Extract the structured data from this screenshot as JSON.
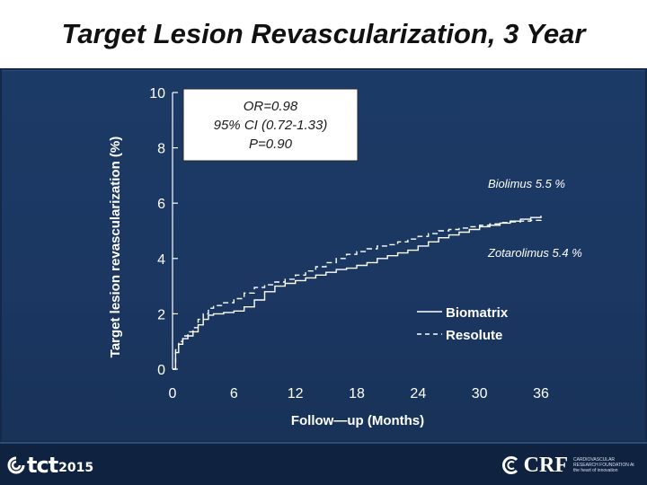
{
  "slide": {
    "title": "Target Lesion Revascularization, 3 Year"
  },
  "chart_data": {
    "type": "line",
    "xlabel": "Follow—up  (Months)",
    "ylabel": "Target  lesion  revascularization  (%)",
    "xlim": [
      0,
      36
    ],
    "ylim": [
      0,
      10
    ],
    "x_ticks": [
      "0",
      "6",
      "12",
      "18",
      "24",
      "30",
      "36"
    ],
    "y_ticks": [
      "0",
      "2",
      "4",
      "6",
      "8",
      "10"
    ],
    "grid": false,
    "legend": [
      "Biomatrix",
      "Resolute"
    ],
    "stats_box": {
      "or": "OR=0.98",
      "ci": "95% CI (0.72-1.33)",
      "p": "P=0.90"
    },
    "annotations": {
      "biolimus": "Biolimus  5.5 %",
      "zotarolimus": "Zotarolimus  5.4 %"
    },
    "series": [
      {
        "name": "Biomatrix",
        "style": "solid",
        "color": "#ffffff",
        "x": [
          0,
          0.3,
          0.6,
          1.0,
          1.5,
          2.0,
          2.5,
          3.0,
          3.5,
          4.0,
          5.0,
          6.0,
          7.0,
          8.0,
          9.0,
          10.0,
          11.0,
          12.0,
          13.0,
          14.0,
          15.0,
          16.0,
          17.0,
          18.0,
          19.0,
          20.0,
          21.0,
          22.0,
          23.0,
          24.0,
          25.0,
          26.0,
          27.0,
          28.0,
          29.0,
          30.0,
          31.0,
          32.0,
          33.0,
          34.0,
          35.0,
          36.0
        ],
        "y": [
          0,
          0.6,
          0.9,
          1.1,
          1.2,
          1.35,
          1.6,
          1.8,
          1.95,
          2.0,
          2.05,
          2.1,
          2.25,
          2.5,
          2.8,
          3.0,
          3.1,
          3.2,
          3.3,
          3.4,
          3.5,
          3.6,
          3.65,
          3.75,
          3.85,
          4.0,
          4.1,
          4.2,
          4.3,
          4.45,
          4.6,
          4.75,
          4.85,
          4.95,
          5.05,
          5.15,
          5.2,
          5.28,
          5.35,
          5.42,
          5.48,
          5.55
        ]
      },
      {
        "name": "Resolute",
        "style": "dashed",
        "color": "#ffffff",
        "x": [
          0,
          0.3,
          0.6,
          1.0,
          1.5,
          2.0,
          2.5,
          3.0,
          3.5,
          4.0,
          5.0,
          6.0,
          7.0,
          8.0,
          9.0,
          10.0,
          11.0,
          12.0,
          13.0,
          14.0,
          15.0,
          16.0,
          17.0,
          18.0,
          19.0,
          20.0,
          21.0,
          22.0,
          23.0,
          24.0,
          25.0,
          26.0,
          27.0,
          28.0,
          29.0,
          30.0,
          31.0,
          32.0,
          33.0,
          34.0,
          35.0,
          36.0
        ],
        "y": [
          0,
          0.7,
          1.0,
          1.2,
          1.35,
          1.5,
          1.8,
          2.0,
          2.2,
          2.3,
          2.4,
          2.55,
          2.75,
          2.95,
          3.05,
          3.15,
          3.25,
          3.4,
          3.55,
          3.7,
          3.85,
          4.0,
          4.15,
          4.25,
          4.35,
          4.45,
          4.5,
          4.6,
          4.7,
          4.8,
          4.9,
          5.0,
          5.05,
          5.1,
          5.15,
          5.2,
          5.25,
          5.3,
          5.32,
          5.35,
          5.38,
          5.42
        ]
      }
    ]
  },
  "footer": {
    "tct_text": "tct",
    "tct_year": "2015",
    "crf_text": "CRF",
    "crf_sub": "CARDIOVASCULAR RESEARCH FOUNDATION At the heart of innovation"
  },
  "colors": {
    "background": "#142848",
    "panel": "#1c3a66",
    "ink": "#ffffff",
    "stats_box_fill": "#ffffff",
    "stats_box_text": "#1a1a1a",
    "annotation_text": "#ffffff"
  }
}
